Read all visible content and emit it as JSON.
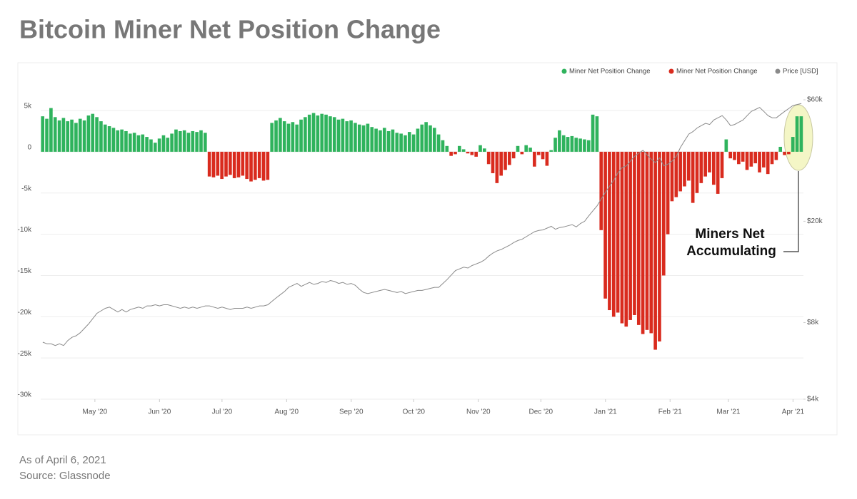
{
  "chart_data": {
    "type": "bar",
    "title": "Bitcoin Miner Net Position Change",
    "annotation": [
      "Miners Net",
      "Accumulating"
    ],
    "footnotes": [
      "As of April 6, 2021",
      "Source: Glassnode"
    ],
    "xlim": [
      0,
      183
    ],
    "xticks": [
      {
        "value": 13,
        "label": "May '20"
      },
      {
        "value": 28.5,
        "label": "Jun '20"
      },
      {
        "value": 43.5,
        "label": "Jul '20"
      },
      {
        "value": 59,
        "label": "Aug '20"
      },
      {
        "value": 74.5,
        "label": "Sep '20"
      },
      {
        "value": 89.5,
        "label": "Oct '20"
      },
      {
        "value": 105,
        "label": "Nov '20"
      },
      {
        "value": 120,
        "label": "Dec '20"
      },
      {
        "value": 135.5,
        "label": "Jan '21"
      },
      {
        "value": 151,
        "label": "Feb '21"
      },
      {
        "value": 165,
        "label": "Mar '21"
      },
      {
        "value": 180.5,
        "label": "Apr '21"
      }
    ],
    "ylim": [
      -30000,
      6300
    ],
    "yticks": [
      {
        "value": 5000,
        "label": "5k"
      },
      0,
      {
        "value": -5000,
        "label": "-5k"
      },
      {
        "value": -10000,
        "label": "-10k"
      },
      {
        "value": -15000,
        "label": "-15k"
      },
      {
        "value": -20000,
        "label": "-20k"
      },
      {
        "value": -25000,
        "label": "-25k"
      },
      {
        "value": -30000,
        "label": "-30k"
      }
    ],
    "y2lim": [
      4000,
      60000
    ],
    "y2_log": true,
    "y2ticks": [
      {
        "value": 4000,
        "label": "$4k"
      },
      {
        "value": 8000,
        "label": "$8k"
      },
      {
        "value": 20000,
        "label": "$20k"
      },
      {
        "value": 60000,
        "label": "$60k"
      }
    ],
    "grid": true,
    "legend": "top-right",
    "series": [
      {
        "name": "Miner Net Position Change",
        "type": "bar",
        "color": "#2fb35d",
        "negative_color": "#d92b1e",
        "values": [
          4300,
          4000,
          5300,
          4200,
          3800,
          4100,
          3700,
          3900,
          3500,
          4000,
          3800,
          4400,
          4600,
          4200,
          3700,
          3300,
          3100,
          2900,
          2600,
          2700,
          2500,
          2200,
          2300,
          2000,
          2100,
          1800,
          1500,
          1100,
          1600,
          2000,
          1700,
          2200,
          2700,
          2500,
          2600,
          2300,
          2500,
          2400,
          2600,
          2300,
          -3000,
          -3100,
          -2900,
          -3300,
          -3000,
          -2800,
          -3200,
          -3100,
          -2900,
          -3300,
          -3600,
          -3400,
          -3200,
          -3500,
          -3400,
          3500,
          3800,
          4100,
          3700,
          3400,
          3600,
          3300,
          3900,
          4200,
          4500,
          4700,
          4400,
          4600,
          4500,
          4300,
          4200,
          3900,
          4000,
          3700,
          3800,
          3500,
          3300,
          3200,
          3400,
          3000,
          2800,
          2600,
          2900,
          2500,
          2700,
          2300,
          2200,
          2000,
          2400,
          2100,
          2800,
          3300,
          3600,
          3200,
          2900,
          2100,
          1400,
          700,
          -500,
          -300,
          700,
          300,
          -200,
          -400,
          -600,
          800,
          400,
          -1500,
          -2600,
          -3800,
          -2900,
          -2200,
          -1600,
          -800,
          700,
          -300,
          800,
          500,
          -1800,
          -400,
          -900,
          -1700,
          200,
          1700,
          2600,
          2000,
          1800,
          1900,
          1700,
          1600,
          1500,
          1400,
          4500,
          4300,
          -9500,
          -17800,
          -19200,
          -20000,
          -19500,
          -20800,
          -21200,
          -20400,
          -19800,
          -21000,
          -22100,
          -21600,
          -22000,
          -24000,
          -23000,
          -15000,
          -10000,
          -6000,
          -5500,
          -4800,
          -4200,
          -3500,
          -6200,
          -5000,
          -3800,
          -3000,
          -2500,
          -4000,
          -5100,
          -3200,
          1500,
          -800,
          -1000,
          -1500,
          -1200,
          -2200,
          -1800,
          -1400,
          -2500,
          -1900,
          -2700,
          -1500,
          -1000,
          600,
          -400,
          -300,
          1800,
          4300,
          4300
        ]
      },
      {
        "name": "Price [USD]",
        "type": "line",
        "axis": "y2",
        "color": "#8a8a8a",
        "values": [
          6700,
          6600,
          6600,
          6500,
          6600,
          6500,
          6800,
          7000,
          7100,
          7300,
          7600,
          7900,
          8300,
          8700,
          8900,
          9100,
          9200,
          9000,
          8800,
          9000,
          8800,
          9000,
          9100,
          9200,
          9100,
          9300,
          9300,
          9400,
          9300,
          9400,
          9400,
          9300,
          9200,
          9100,
          9200,
          9100,
          9200,
          9100,
          9200,
          9300,
          9300,
          9200,
          9100,
          9200,
          9100,
          9000,
          9100,
          9100,
          9100,
          9200,
          9100,
          9200,
          9300,
          9300,
          9400,
          9700,
          10000,
          10300,
          10600,
          11000,
          11200,
          11400,
          11100,
          11300,
          11500,
          11300,
          11400,
          11600,
          11500,
          11700,
          11600,
          11400,
          11500,
          11300,
          11400,
          11200,
          10800,
          10500,
          10400,
          10500,
          10600,
          10700,
          10800,
          10700,
          10600,
          10500,
          10600,
          10400,
          10500,
          10600,
          10700,
          10700,
          10800,
          10900,
          11000,
          11000,
          11400,
          11800,
          12300,
          12800,
          13000,
          13200,
          13100,
          13400,
          13600,
          13800,
          14100,
          14600,
          15000,
          15300,
          15500,
          15800,
          16100,
          16500,
          16800,
          17000,
          17400,
          17800,
          18200,
          18400,
          18500,
          18800,
          19100,
          18600,
          18900,
          19000,
          19200,
          19400,
          19000,
          19600,
          20000,
          21000,
          22000,
          23000,
          24500,
          26000,
          27500,
          29000,
          31000,
          32500,
          33000,
          34500,
          36000,
          37000,
          38000,
          36500,
          35000,
          34000,
          35500,
          33000,
          33500,
          34500,
          36000,
          39000,
          41500,
          44000,
          45000,
          46500,
          47500,
          48500,
          48000,
          50000,
          51000,
          52000,
          50000,
          47500,
          48000,
          49000,
          50000,
          52000,
          54000,
          55000,
          56000,
          54000,
          52000,
          51000,
          51000,
          52500,
          54000,
          55500,
          57000,
          57500,
          58000
        ]
      }
    ]
  }
}
